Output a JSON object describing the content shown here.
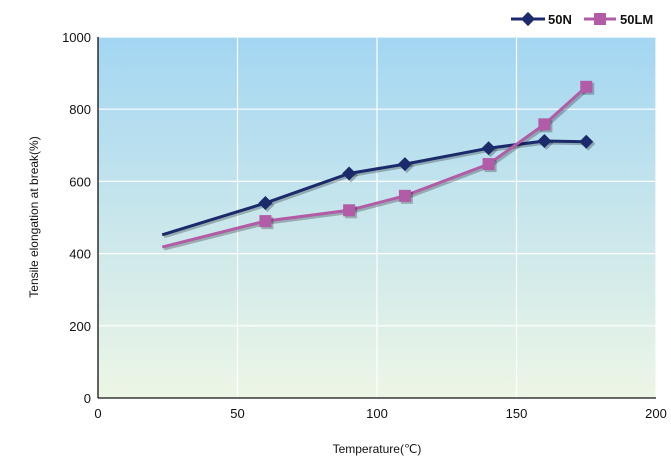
{
  "chart_data": {
    "type": "line",
    "title": "",
    "xlabel": "Temperature(℃)",
    "ylabel": "Tensile elongation at break(%)",
    "xlim": [
      0,
      200
    ],
    "ylim": [
      0,
      1000
    ],
    "xticks": [
      0,
      50,
      100,
      150,
      200
    ],
    "yticks": [
      0,
      200,
      400,
      600,
      800,
      1000
    ],
    "grid": true,
    "legend_position": "top-right",
    "series": [
      {
        "name": "50N",
        "color": "#1b2a6b",
        "marker": "diamond",
        "x": [
          23,
          60,
          90,
          110,
          140,
          160,
          175
        ],
        "y": [
          452,
          540,
          622,
          648,
          692,
          712,
          710
        ]
      },
      {
        "name": "50LM",
        "color": "#b25ba6",
        "marker": "square",
        "x": [
          23,
          60,
          90,
          110,
          140,
          160,
          175
        ],
        "y": [
          418,
          490,
          520,
          560,
          648,
          758,
          862
        ]
      }
    ]
  }
}
